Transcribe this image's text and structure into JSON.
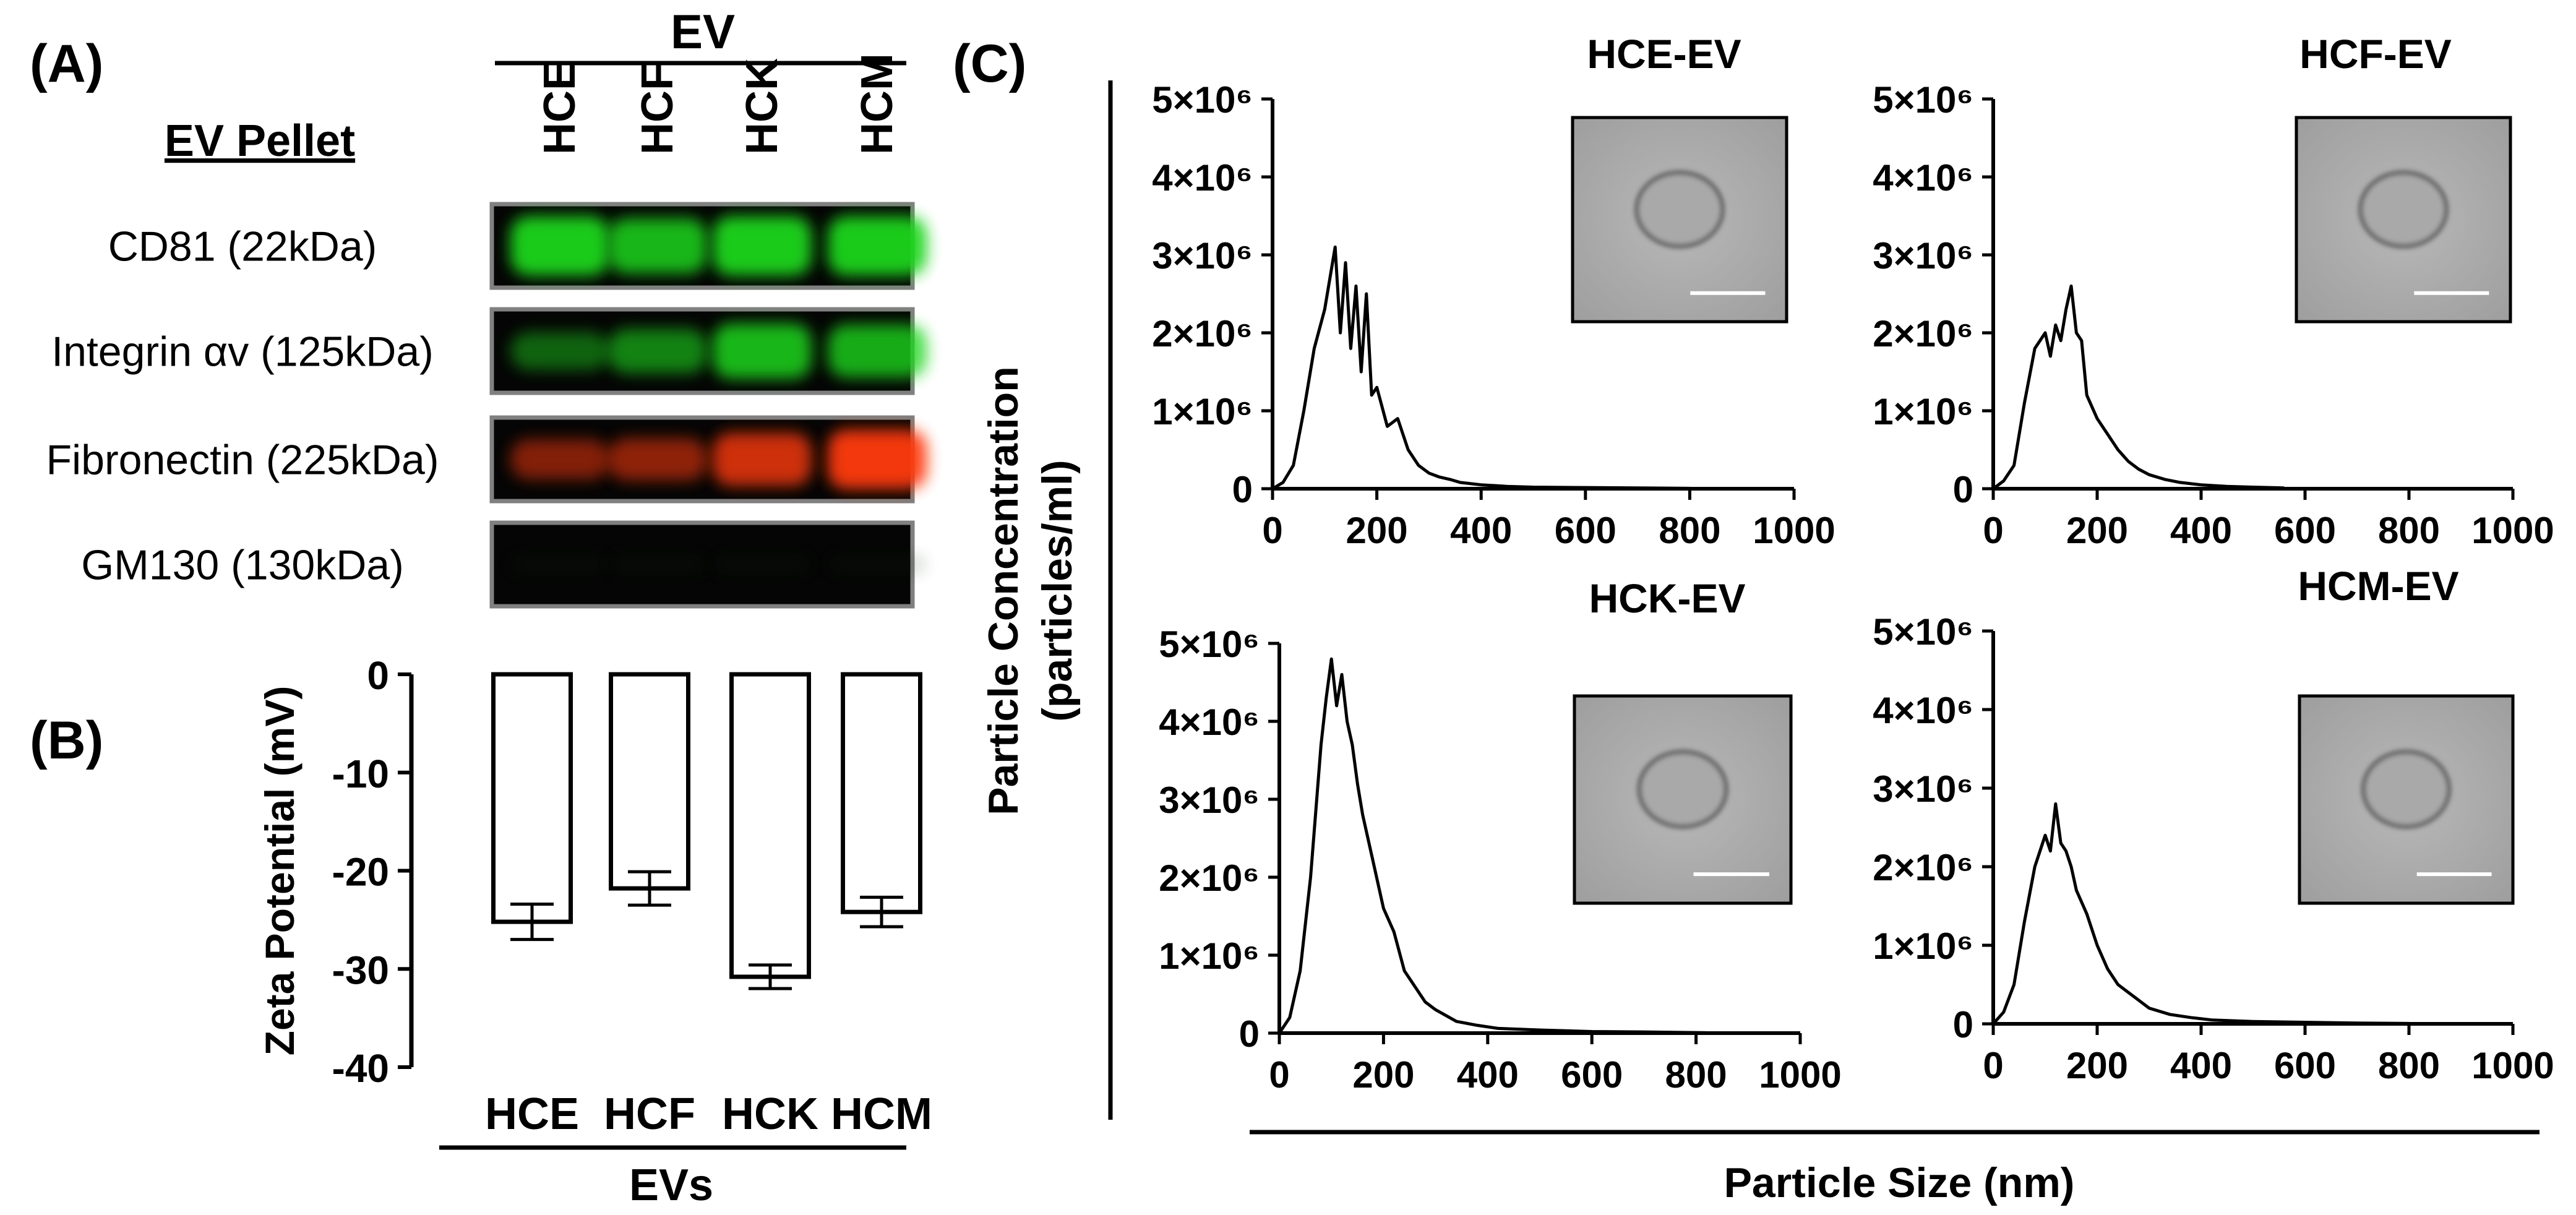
{
  "panel_labels": {
    "a": "(A)",
    "b": "(B)",
    "c": "(C)"
  },
  "western_blot": {
    "group_label": "EV",
    "pellet_label": "EV Pellet",
    "lanes": [
      "HCE",
      "HCF",
      "HCK",
      "HCM"
    ],
    "rows": [
      {
        "label": "CD81 (22kDa)",
        "color": "#1fd61f",
        "intensity": [
          0.95,
          0.85,
          0.95,
          0.95
        ]
      },
      {
        "label": "Integrin αv (125kDa)",
        "color": "#1fd61f",
        "intensity": [
          0.45,
          0.6,
          0.85,
          0.8
        ]
      },
      {
        "label": "Fibronectin (225kDa)",
        "color": "#ff3a10",
        "intensity": [
          0.5,
          0.55,
          0.8,
          0.95
        ]
      },
      {
        "label": "GM130 (130kDa)",
        "color": "#0a2a0a",
        "intensity": [
          0.05,
          0.05,
          0.05,
          0.05
        ]
      }
    ]
  },
  "zeta_chart": {
    "ylabel": "Zeta Potential (mV)",
    "xgroup_label": "EVs",
    "yticks": [
      "0",
      "-10",
      "-20",
      "-30",
      "-40"
    ]
  },
  "size_charts": {
    "ylabel_line1": "Particle Concentration",
    "ylabel_line2": "(particles/ml)",
    "xlabel": "Particle Size (nm)",
    "yticks": [
      "0",
      "1×10⁶",
      "2×10⁶",
      "3×10⁶",
      "4×10⁶",
      "5×10⁶"
    ],
    "xticks": [
      "0",
      "200",
      "400",
      "600",
      "800",
      "1000"
    ]
  },
  "chart_data": [
    {
      "type": "bar",
      "categories": [
        "HCE",
        "HCF",
        "HCK",
        "HCM"
      ],
      "values": [
        -25.2,
        -21.8,
        -30.8,
        -24.2
      ],
      "errors": [
        1.8,
        1.7,
        1.2,
        1.5
      ],
      "title": "",
      "xlabel": "EVs",
      "ylabel": "Zeta Potential (mV)",
      "ylim": [
        -40,
        0
      ]
    },
    {
      "type": "line",
      "title": "HCE-EV",
      "xlabel": "Particle Size (nm)",
      "ylabel": "Particle Concentration (particles/ml)",
      "xlim": [
        0,
        1000
      ],
      "ylim": [
        0,
        5000000
      ],
      "x": [
        0,
        20,
        40,
        60,
        80,
        100,
        120,
        130,
        140,
        150,
        160,
        170,
        180,
        190,
        200,
        220,
        240,
        260,
        280,
        300,
        320,
        340,
        360,
        400,
        450,
        500,
        600,
        700,
        800
      ],
      "y": [
        0,
        80000,
        300000,
        1000000,
        1800000,
        2300000,
        3100000,
        2000000,
        2900000,
        1800000,
        2600000,
        1500000,
        2500000,
        1200000,
        1300000,
        800000,
        900000,
        500000,
        300000,
        200000,
        150000,
        120000,
        80000,
        50000,
        30000,
        20000,
        15000,
        10000,
        5000
      ]
    },
    {
      "type": "line",
      "title": "HCF-EV",
      "xlabel": "Particle Size (nm)",
      "ylabel": "Particle Concentration (particles/ml)",
      "xlim": [
        0,
        1000
      ],
      "ylim": [
        0,
        5000000
      ],
      "x": [
        0,
        20,
        40,
        60,
        80,
        100,
        110,
        120,
        130,
        140,
        150,
        160,
        170,
        180,
        200,
        220,
        240,
        260,
        280,
        300,
        330,
        360,
        400,
        450,
        500,
        560
      ],
      "y": [
        0,
        100000,
        300000,
        1100000,
        1800000,
        2000000,
        1700000,
        2100000,
        1900000,
        2300000,
        2600000,
        2000000,
        1900000,
        1200000,
        900000,
        700000,
        500000,
        350000,
        250000,
        180000,
        120000,
        80000,
        50000,
        30000,
        20000,
        10000
      ]
    },
    {
      "type": "line",
      "title": "HCK-EV",
      "xlabel": "Particle Size (nm)",
      "ylabel": "Particle Concentration (particles/ml)",
      "xlim": [
        0,
        1000
      ],
      "ylim": [
        0,
        5000000
      ],
      "x": [
        0,
        20,
        40,
        60,
        80,
        90,
        100,
        110,
        120,
        130,
        140,
        150,
        160,
        180,
        200,
        220,
        240,
        260,
        280,
        300,
        340,
        380,
        420,
        500,
        600,
        700,
        820
      ],
      "y": [
        0,
        200000,
        800000,
        2000000,
        3700000,
        4300000,
        4800000,
        4200000,
        4600000,
        4000000,
        3700000,
        3200000,
        2800000,
        2200000,
        1600000,
        1300000,
        800000,
        600000,
        400000,
        300000,
        150000,
        100000,
        60000,
        40000,
        20000,
        15000,
        5000
      ]
    },
    {
      "type": "line",
      "title": "HCM-EV",
      "xlabel": "Particle Size (nm)",
      "ylabel": "Particle Concentration (particles/ml)",
      "xlim": [
        0,
        1000
      ],
      "ylim": [
        0,
        5000000
      ],
      "x": [
        0,
        20,
        40,
        60,
        80,
        100,
        110,
        120,
        130,
        140,
        150,
        160,
        180,
        200,
        220,
        240,
        260,
        280,
        300,
        340,
        380,
        420,
        500,
        600,
        700,
        800
      ],
      "y": [
        0,
        150000,
        500000,
        1300000,
        2000000,
        2400000,
        2200000,
        2800000,
        2300000,
        2200000,
        2000000,
        1700000,
        1400000,
        1000000,
        700000,
        500000,
        400000,
        300000,
        200000,
        120000,
        80000,
        50000,
        30000,
        20000,
        10000,
        5000
      ]
    }
  ]
}
